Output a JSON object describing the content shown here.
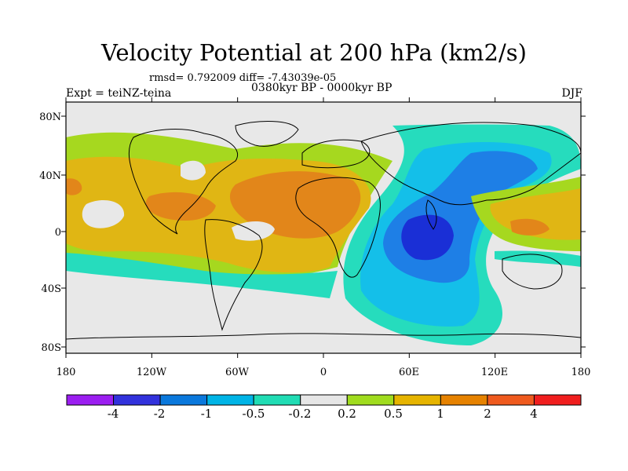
{
  "title": "Velocity Potential at 200 hPa (km2/s)",
  "stats": "rmsd= 0.792009 diff= -7.43039e-05",
  "experiment": "Expt = teiNZ-teina",
  "period": "0380kyr BP - 0000kyr BP",
  "season": "DJF",
  "lat_labels": [
    "80N",
    "40N",
    "0",
    "40S",
    "80S"
  ],
  "lon_labels": [
    "180",
    "120W",
    "60W",
    "0",
    "60E",
    "120E",
    "180"
  ],
  "colorbar": {
    "colors": [
      "#9b1ef0",
      "#3232dc",
      "#0a78dc",
      "#00b4e6",
      "#20dcb4",
      "#e6e6e6",
      "#a0dc1e",
      "#e6b400",
      "#e68200",
      "#ef5a1e",
      "#f01e1e"
    ],
    "labels": [
      "-4",
      "-2",
      "-1",
      "-0.5",
      "-0.2",
      "0.2",
      "0.5",
      "1",
      "2",
      "4"
    ]
  },
  "palette": {
    "neg3": "#1a2fd6",
    "neg2": "#1e7fe6",
    "neg1": "#14bfe9",
    "neg0": "#26dcbd",
    "zero": "#e8e8e8",
    "pos0": "#a6d81f",
    "pos1": "#e0b614",
    "pos2": "#e2861a"
  }
}
